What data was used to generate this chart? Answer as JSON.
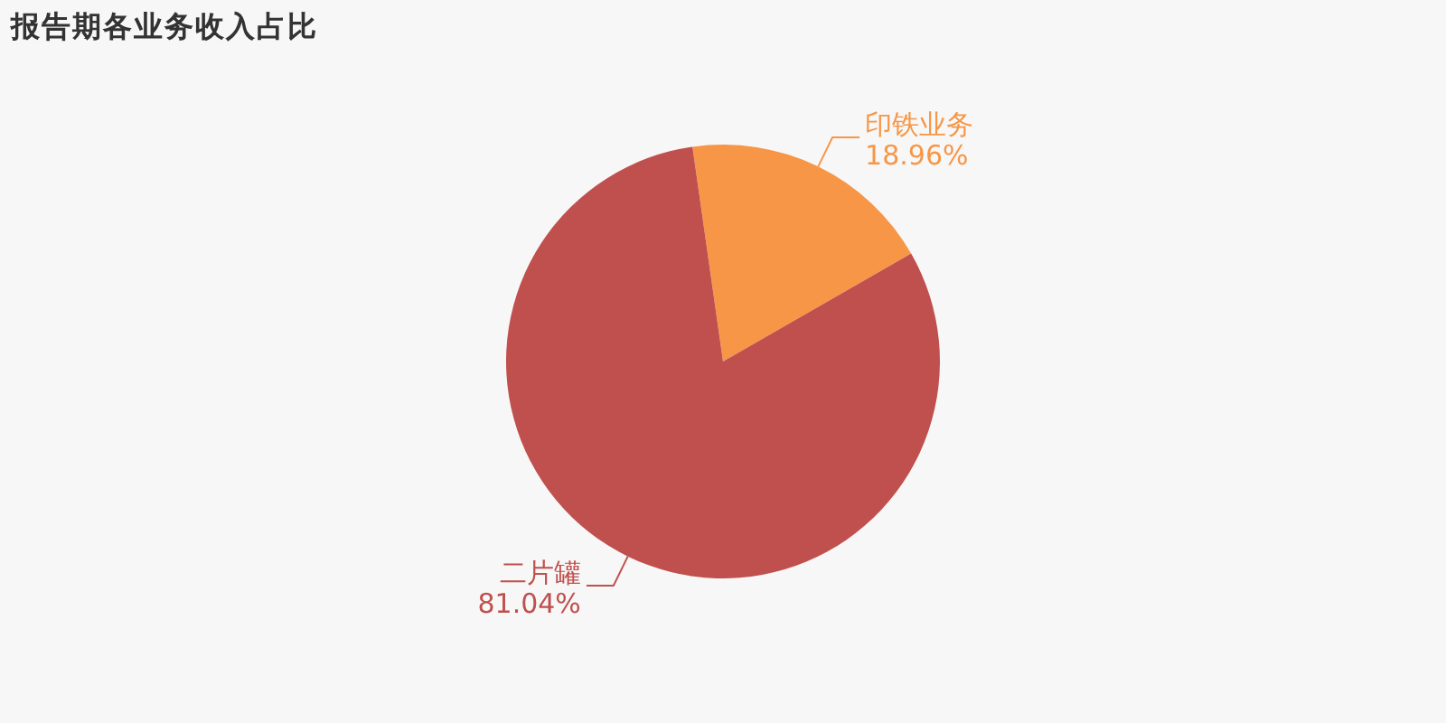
{
  "chart_data": {
    "type": "pie",
    "title": "报告期各业务收入占比",
    "categories": [
      "印铁业务",
      "二片罐"
    ],
    "values": [
      18.96,
      81.04
    ],
    "colors": [
      "#f79646",
      "#c0504d"
    ],
    "value_labels": [
      "18.96%",
      "81.04%"
    ]
  }
}
